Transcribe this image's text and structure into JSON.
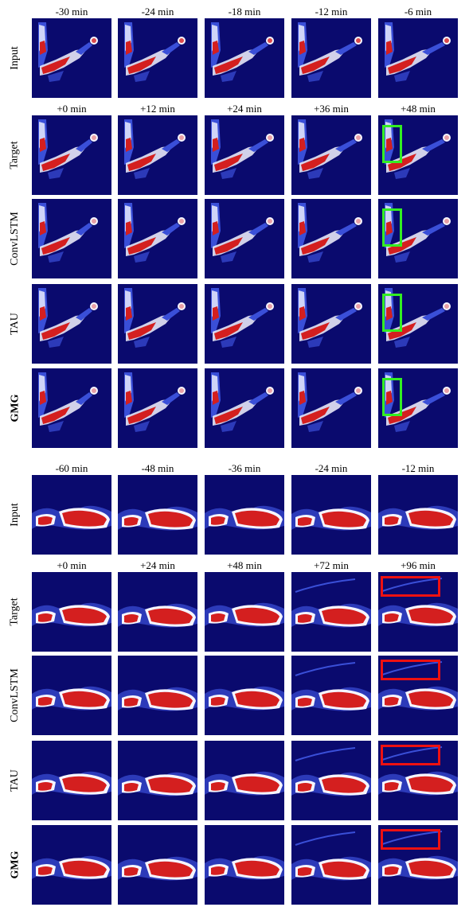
{
  "figure": {
    "blocks": [
      {
        "id": "block-1",
        "style": "diagonal",
        "input_times": [
          "-30 min",
          "-24 min",
          "-18 min",
          "-12 min",
          "-6 min"
        ],
        "output_times": [
          "+0 min",
          "+12 min",
          "+24 min",
          "+36 min",
          "+48 min"
        ],
        "rows": [
          {
            "label": "Input",
            "bold": false,
            "kind": "input"
          },
          {
            "label": "Target",
            "bold": false,
            "kind": "output"
          },
          {
            "label": "ConvLSTM",
            "bold": false,
            "kind": "output"
          },
          {
            "label": "TAU",
            "bold": false,
            "kind": "output"
          },
          {
            "label": "GMG",
            "bold": true,
            "kind": "output"
          }
        ],
        "highlight_color": "#33ee22"
      },
      {
        "id": "block-2",
        "style": "band",
        "input_times": [
          "-60 min",
          "-48 min",
          "-36 min",
          "-24 min",
          "-12 min"
        ],
        "output_times": [
          "+0 min",
          "+24 min",
          "+48 min",
          "+72 min",
          "+96 min"
        ],
        "rows": [
          {
            "label": "Input",
            "bold": false,
            "kind": "input"
          },
          {
            "label": "Target",
            "bold": false,
            "kind": "output"
          },
          {
            "label": "ConvLSTM",
            "bold": false,
            "kind": "output"
          },
          {
            "label": "TAU",
            "bold": false,
            "kind": "output"
          },
          {
            "label": "GMG",
            "bold": true,
            "kind": "output"
          }
        ],
        "highlight_color": "#ee1111"
      }
    ],
    "colors": {
      "background": "#0a0a6e",
      "high": "#d41f1f",
      "mid": "#f5f5ff",
      "low": "#3a4fd8"
    }
  }
}
